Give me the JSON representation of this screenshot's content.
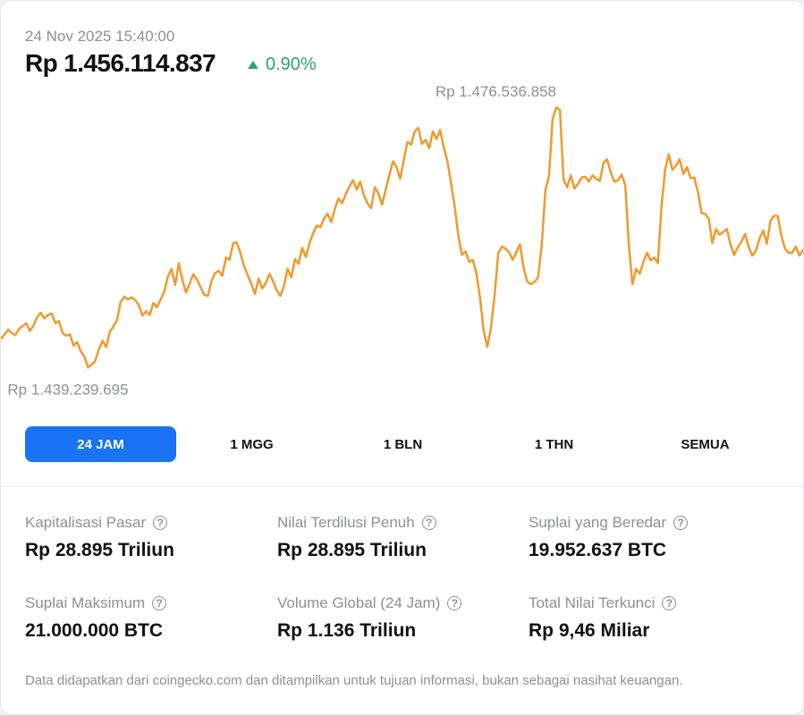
{
  "header": {
    "timestamp": "24 Nov 2025 15:40:00",
    "price": "Rp 1.456.114.837",
    "change": "0.90%",
    "change_direction": "up",
    "change_color": "#2fa36b"
  },
  "chart_data": {
    "type": "line",
    "line_color": "#f09a2e",
    "max_label": "Rp 1.476.536.858",
    "min_label": "Rp 1.439.239.695",
    "ylim": [
      1438000000,
      1479000000
    ],
    "values": [
      1443400000,
      1444000000,
      1444700000,
      1444200000,
      1443900000,
      1444800000,
      1445200000,
      1445600000,
      1444500000,
      1445300000,
      1446500000,
      1447100000,
      1446300000,
      1446800000,
      1447000000,
      1445600000,
      1445900000,
      1444200000,
      1443800000,
      1444000000,
      1442400000,
      1442900000,
      1441600000,
      1440800000,
      1439240000,
      1439700000,
      1440200000,
      1441900000,
      1443100000,
      1442200000,
      1444400000,
      1445100000,
      1446100000,
      1448700000,
      1449400000,
      1449000000,
      1449300000,
      1448900000,
      1448200000,
      1446700000,
      1447300000,
      1446800000,
      1448500000,
      1447900000,
      1449000000,
      1450100000,
      1452300000,
      1453400000,
      1451100000,
      1454200000,
      1451800000,
      1450000000,
      1451300000,
      1452600000,
      1451900000,
      1450800000,
      1449700000,
      1449500000,
      1451600000,
      1452800000,
      1453100000,
      1452400000,
      1455000000,
      1454700000,
      1457100000,
      1457200000,
      1455600000,
      1453800000,
      1452500000,
      1451200000,
      1449800000,
      1452000000,
      1450600000,
      1451400000,
      1452700000,
      1451600000,
      1450300000,
      1449500000,
      1451000000,
      1453400000,
      1452200000,
      1454800000,
      1454100000,
      1456400000,
      1455100000,
      1457000000,
      1458500000,
      1459600000,
      1459400000,
      1460600000,
      1461300000,
      1460100000,
      1462000000,
      1463500000,
      1462800000,
      1464100000,
      1465200000,
      1466100000,
      1464800000,
      1465900000,
      1463900000,
      1462800000,
      1462100000,
      1465100000,
      1464200000,
      1462600000,
      1464700000,
      1466800000,
      1468800000,
      1468000000,
      1466300000,
      1469000000,
      1471600000,
      1471200000,
      1473100000,
      1473600000,
      1471300000,
      1471900000,
      1470700000,
      1473100000,
      1472000000,
      1473300000,
      1470800000,
      1468900000,
      1465700000,
      1462300000,
      1458200000,
      1455400000,
      1455900000,
      1454400000,
      1454700000,
      1452800000,
      1449200000,
      1444500000,
      1442200000,
      1444900000,
      1449600000,
      1455600000,
      1456600000,
      1456300000,
      1455800000,
      1454700000,
      1455800000,
      1456900000,
      1453500000,
      1451600000,
      1451200000,
      1451500000,
      1452200000,
      1456900000,
      1464600000,
      1466800000,
      1474900000,
      1476540000,
      1476200000,
      1466200000,
      1465100000,
      1466800000,
      1464900000,
      1465600000,
      1466500000,
      1466600000,
      1465900000,
      1466800000,
      1466300000,
      1466000000,
      1468600000,
      1469100000,
      1467200000,
      1465900000,
      1466100000,
      1466900000,
      1465400000,
      1456700000,
      1451200000,
      1453400000,
      1452700000,
      1454400000,
      1455700000,
      1454600000,
      1455000000,
      1454200000,
      1462400000,
      1467700000,
      1469800000,
      1467600000,
      1468200000,
      1469100000,
      1467000000,
      1468000000,
      1466400000,
      1466500000,
      1464500000,
      1461400000,
      1461300000,
      1460600000,
      1457100000,
      1459100000,
      1458300000,
      1458700000,
      1459100000,
      1456900000,
      1455400000,
      1456500000,
      1457300000,
      1458400000,
      1456500000,
      1455300000,
      1456000000,
      1457800000,
      1458900000,
      1457000000,
      1460300000,
      1461000000,
      1461000000,
      1458200000,
      1456300000,
      1455700000,
      1455700000,
      1456600000,
      1455300000,
      1456100000
    ]
  },
  "tabs": [
    {
      "label": "24 JAM",
      "active": true
    },
    {
      "label": "1 MGG",
      "active": false
    },
    {
      "label": "1 BLN",
      "active": false
    },
    {
      "label": "1 THN",
      "active": false
    },
    {
      "label": "SEMUA",
      "active": false
    }
  ],
  "stats": [
    {
      "label": "Kapitalisasi Pasar",
      "value": "Rp 28.895 Triliun"
    },
    {
      "label": "Nilai Terdilusi Penuh",
      "value": "Rp 28.895 Triliun"
    },
    {
      "label": "Suplai yang Beredar",
      "value": "19.952.637 BTC"
    },
    {
      "label": "Suplai Maksimum",
      "value": "21.000.000 BTC"
    },
    {
      "label": "Volume Global (24 Jam)",
      "value": "Rp 1.136 Triliun"
    },
    {
      "label": "Total Nilai Terkunci",
      "value": "Rp 9,46 Miliar"
    }
  ],
  "help_icon_glyph": "?",
  "disclaimer": "Data didapatkan dari coingecko.com dan ditampilkan untuk tujuan informasi, bukan sebagai nasihat keuangan."
}
